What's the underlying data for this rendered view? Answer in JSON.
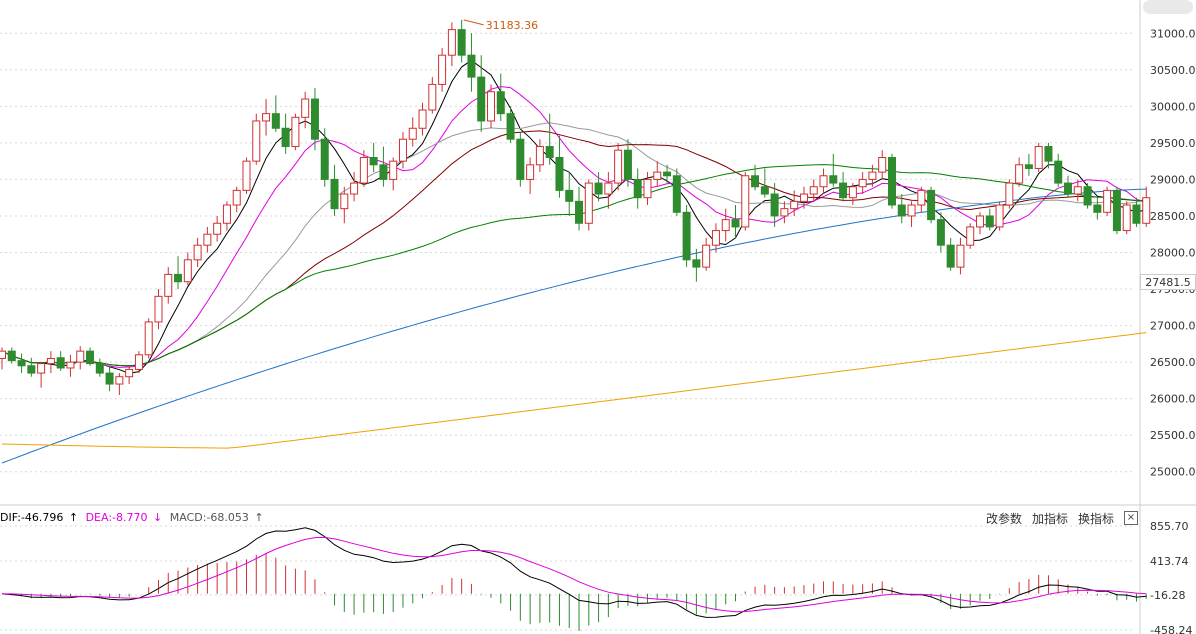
{
  "chart_data": [
    {
      "type": "candlestick",
      "title": "",
      "y_ticks": [
        "31000.0",
        "30500.0",
        "30000.0",
        "29500.0",
        "29000.0",
        "28500.0",
        "28000.0",
        "27500.0",
        "27000.0",
        "26500.0",
        "26000.0",
        "25500.0",
        "25000.0"
      ],
      "ylim": [
        24750,
        31250
      ],
      "current_price": "27481.5",
      "max_annotation": "31183.36",
      "grid": true,
      "candles": [
        [
          26550,
          26700,
          26400,
          26650
        ],
        [
          26650,
          26700,
          26480,
          26520
        ],
        [
          26520,
          26620,
          26350,
          26450
        ],
        [
          26450,
          26560,
          26300,
          26350
        ],
        [
          26350,
          26500,
          26150,
          26480
        ],
        [
          26480,
          26650,
          26350,
          26550
        ],
        [
          26560,
          26650,
          26380,
          26420
        ],
        [
          26420,
          26600,
          26300,
          26500
        ],
        [
          26500,
          26720,
          26400,
          26650
        ],
        [
          26650,
          26700,
          26450,
          26480
        ],
        [
          26480,
          26550,
          26300,
          26350
        ],
        [
          26350,
          26450,
          26100,
          26200
        ],
        [
          26200,
          26350,
          26050,
          26300
        ],
        [
          26300,
          26450,
          26200,
          26400
        ],
        [
          26400,
          26650,
          26350,
          26600
        ],
        [
          26600,
          27100,
          26550,
          27050
        ],
        [
          27050,
          27500,
          26950,
          27400
        ],
        [
          27400,
          27800,
          27300,
          27700
        ],
        [
          27700,
          27950,
          27500,
          27600
        ],
        [
          27600,
          28000,
          27550,
          27900
        ],
        [
          27900,
          28200,
          27800,
          28100
        ],
        [
          28100,
          28350,
          28000,
          28250
        ],
        [
          28250,
          28500,
          28150,
          28400
        ],
        [
          28400,
          28700,
          28300,
          28650
        ],
        [
          28650,
          28900,
          28550,
          28850
        ],
        [
          28850,
          29300,
          28800,
          29250
        ],
        [
          29250,
          29900,
          29200,
          29800
        ],
        [
          29800,
          30100,
          29600,
          29900
        ],
        [
          29900,
          30150,
          29650,
          29700
        ],
        [
          29700,
          29900,
          29350,
          29450
        ],
        [
          29450,
          29900,
          29400,
          29850
        ],
        [
          29850,
          30200,
          29700,
          30100
        ],
        [
          30100,
          30250,
          29400,
          29550
        ],
        [
          29550,
          29700,
          28900,
          29000
        ],
        [
          29000,
          29200,
          28500,
          28600
        ],
        [
          28600,
          28900,
          28400,
          28800
        ],
        [
          28800,
          29100,
          28700,
          28950
        ],
        [
          28950,
          29400,
          28900,
          29300
        ],
        [
          29300,
          29500,
          29100,
          29200
        ],
        [
          29200,
          29450,
          28900,
          29000
        ],
        [
          29000,
          29300,
          28850,
          29250
        ],
        [
          29250,
          29650,
          29150,
          29550
        ],
        [
          29550,
          29850,
          29450,
          29700
        ],
        [
          29700,
          30050,
          29600,
          29950
        ],
        [
          29950,
          30400,
          29900,
          30300
        ],
        [
          30300,
          30800,
          30200,
          30700
        ],
        [
          30700,
          31150,
          30550,
          31050
        ],
        [
          31050,
          31183,
          30600,
          30700
        ],
        [
          30700,
          31000,
          30200,
          30400
        ],
        [
          30400,
          30700,
          29650,
          29800
        ],
        [
          29800,
          30300,
          29700,
          30200
        ],
        [
          30200,
          30450,
          29800,
          29900
        ],
        [
          29900,
          30000,
          29500,
          29550
        ],
        [
          29550,
          29650,
          28900,
          29000
        ],
        [
          29000,
          29300,
          28800,
          29200
        ],
        [
          29200,
          29550,
          29100,
          29450
        ],
        [
          29450,
          29900,
          29200,
          29300
        ],
        [
          29300,
          29600,
          28750,
          28850
        ],
        [
          28850,
          29100,
          28500,
          28700
        ],
        [
          28700,
          28900,
          28300,
          28400
        ],
        [
          28400,
          29000,
          28300,
          28950
        ],
        [
          28950,
          29100,
          28700,
          28800
        ],
        [
          28800,
          29100,
          28600,
          28950
        ],
        [
          28950,
          29500,
          28850,
          29400
        ],
        [
          29400,
          29550,
          28900,
          29000
        ],
        [
          29000,
          29150,
          28600,
          28750
        ],
        [
          28750,
          29100,
          28650,
          29000
        ],
        [
          29000,
          29250,
          28900,
          29100
        ],
        [
          29100,
          29200,
          28950,
          29050
        ],
        [
          29050,
          29150,
          28500,
          28550
        ],
        [
          28550,
          28650,
          27800,
          27900
        ],
        [
          27900,
          28050,
          27600,
          27800
        ],
        [
          27800,
          28200,
          27750,
          28100
        ],
        [
          28100,
          28400,
          28000,
          28300
        ],
        [
          28300,
          28600,
          28150,
          28450
        ],
        [
          28450,
          28650,
          28200,
          28350
        ],
        [
          28350,
          29100,
          28300,
          29050
        ],
        [
          29050,
          29200,
          28850,
          28900
        ],
        [
          28900,
          29150,
          28750,
          28800
        ],
        [
          28800,
          28950,
          28350,
          28500
        ],
        [
          28500,
          28700,
          28400,
          28600
        ],
        [
          28600,
          28850,
          28500,
          28700
        ],
        [
          28700,
          28900,
          28600,
          28800
        ],
        [
          28800,
          29000,
          28700,
          28900
        ],
        [
          28900,
          29150,
          28800,
          29050
        ],
        [
          29050,
          29350,
          28900,
          28950
        ],
        [
          28950,
          29100,
          28700,
          28750
        ],
        [
          28750,
          28950,
          28650,
          28900
        ],
        [
          28900,
          29100,
          28800,
          29000
        ],
        [
          29000,
          29200,
          28900,
          29100
        ],
        [
          29100,
          29400,
          29000,
          29300
        ],
        [
          29300,
          29350,
          28600,
          28650
        ],
        [
          28650,
          28800,
          28400,
          28500
        ],
        [
          28500,
          28700,
          28350,
          28650
        ],
        [
          28650,
          28900,
          28550,
          28850
        ],
        [
          28850,
          28900,
          28400,
          28450
        ],
        [
          28450,
          28550,
          28000,
          28100
        ],
        [
          28100,
          28200,
          27750,
          27800
        ],
        [
          27800,
          28200,
          27700,
          28100
        ],
        [
          28100,
          28400,
          28050,
          28350
        ],
        [
          28350,
          28550,
          28250,
          28500
        ],
        [
          28500,
          28600,
          28300,
          28350
        ],
        [
          28350,
          28700,
          28300,
          28650
        ],
        [
          28650,
          29000,
          28600,
          28950
        ],
        [
          28950,
          29300,
          28900,
          29200
        ],
        [
          29200,
          29350,
          29050,
          29150
        ],
        [
          29150,
          29500,
          29100,
          29450
        ],
        [
          29450,
          29500,
          29150,
          29250
        ],
        [
          29250,
          29350,
          28900,
          28950
        ],
        [
          28950,
          29050,
          28750,
          28800
        ],
        [
          28800,
          29000,
          28700,
          28900
        ],
        [
          28900,
          28950,
          28600,
          28650
        ],
        [
          28650,
          28750,
          28450,
          28550
        ],
        [
          28550,
          28900,
          28500,
          28850
        ],
        [
          28850,
          28900,
          28250,
          28300
        ],
        [
          28300,
          28700,
          28250,
          28650
        ],
        [
          28650,
          28750,
          28350,
          28400
        ],
        [
          28400,
          28900,
          28350,
          28750
        ]
      ],
      "ma_colors": [
        "#000000",
        "#e000e0",
        "#999999",
        "#800000",
        "#008000",
        "#1e73c8",
        "#f0a000"
      ]
    },
    {
      "type": "macd",
      "y_ticks": [
        "855.70",
        "413.74",
        "-16.28",
        "-458.24"
      ],
      "ylim": [
        -458.24,
        855.7
      ],
      "indicators": [
        {
          "label": "DIF:-46.796",
          "arrow": "↑",
          "color": "#000000"
        },
        {
          "label": "DEA:-8.770",
          "arrow": "↓",
          "color": "#e000e0"
        },
        {
          "label": "MACD:-68.053",
          "arrow": "↑",
          "color": "#555555"
        }
      ]
    }
  ],
  "toolbar": {
    "modify_params": "改参数",
    "add_indicator": "加指标",
    "switch_indicator": "换指标",
    "close": "×"
  },
  "colors": {
    "up": "#d03030",
    "down": "#2e8b2e",
    "grid": "#d8d8d8"
  }
}
